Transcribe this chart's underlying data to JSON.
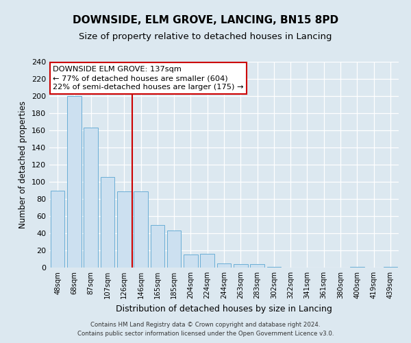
{
  "title": "DOWNSIDE, ELM GROVE, LANCING, BN15 8PD",
  "subtitle": "Size of property relative to detached houses in Lancing",
  "xlabel": "Distribution of detached houses by size in Lancing",
  "ylabel": "Number of detached properties",
  "bar_labels": [
    "48sqm",
    "68sqm",
    "87sqm",
    "107sqm",
    "126sqm",
    "146sqm",
    "165sqm",
    "185sqm",
    "204sqm",
    "224sqm",
    "244sqm",
    "263sqm",
    "283sqm",
    "302sqm",
    "322sqm",
    "341sqm",
    "361sqm",
    "380sqm",
    "400sqm",
    "419sqm",
    "439sqm"
  ],
  "bar_values": [
    90,
    200,
    163,
    106,
    89,
    89,
    50,
    43,
    15,
    16,
    5,
    4,
    4,
    1,
    0,
    0,
    0,
    0,
    1,
    0,
    1
  ],
  "bar_color": "#cce0f0",
  "bar_edge_color": "#6aaed6",
  "vline_x": 4.5,
  "vline_color": "#cc0000",
  "annotation_title": "DOWNSIDE ELM GROVE: 137sqm",
  "annotation_line1": "← 77% of detached houses are smaller (604)",
  "annotation_line2": "22% of semi-detached houses are larger (175) →",
  "annotation_box_facecolor": "#ffffff",
  "annotation_box_edgecolor": "#cc0000",
  "ylim": [
    0,
    240
  ],
  "yticks": [
    0,
    20,
    40,
    60,
    80,
    100,
    120,
    140,
    160,
    180,
    200,
    220,
    240
  ],
  "footnote1": "Contains HM Land Registry data © Crown copyright and database right 2024.",
  "footnote2": "Contains public sector information licensed under the Open Government Licence v3.0.",
  "bg_color": "#dce8f0",
  "plot_bg_color": "#dce8f0",
  "grid_color": "#ffffff",
  "title_fontsize": 11,
  "subtitle_fontsize": 9.5,
  "ylabel_fontsize": 8.5,
  "xlabel_fontsize": 9
}
